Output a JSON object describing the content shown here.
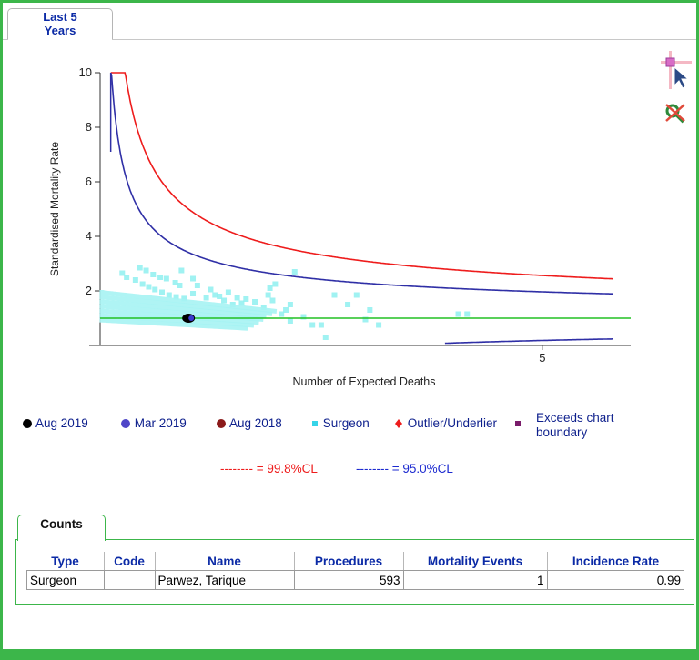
{
  "tabs": {
    "active_line1": "Last 5",
    "active_line2": "Years"
  },
  "tools": {
    "zoom": "zoom-cursor-icon",
    "reset": "reset-zoom-icon"
  },
  "chart_data": {
    "type": "scatter",
    "ylabel": "Standardised Mortality Rate",
    "xlabel": "Number of Expected Deaths",
    "xlim": [
      0,
      6
    ],
    "ylim": [
      0,
      10
    ],
    "x_ticks": [
      "5"
    ],
    "y_ticks": [
      "10",
      "8",
      "6",
      "4",
      "2"
    ],
    "reference_line": {
      "y": 1,
      "color": "#22c023"
    },
    "control_limits": [
      {
        "label": "99.8%CL",
        "color": "#ee1c1c",
        "style": "upper"
      },
      {
        "label": "95.0%CL",
        "color": "#2f2fa6",
        "style": "upper and lower"
      }
    ],
    "series": [
      {
        "name": "Aug 2019",
        "marker": "circle",
        "color": "#000000",
        "points": [
          [
            1.0,
            1.0
          ]
        ]
      },
      {
        "name": "Mar 2019",
        "marker": "circle",
        "color": "#4f46c8",
        "points": []
      },
      {
        "name": "Aug 2018",
        "marker": "circle",
        "color": "#8b1a1a",
        "points": []
      },
      {
        "name": "Surgeon",
        "marker": "square",
        "color": "#8ff0f0",
        "points": [
          [
            0.25,
            2.65
          ],
          [
            0.3,
            2.5
          ],
          [
            0.4,
            2.4
          ],
          [
            0.48,
            2.25
          ],
          [
            0.55,
            2.15
          ],
          [
            0.62,
            2.05
          ],
          [
            0.7,
            1.95
          ],
          [
            0.78,
            1.85
          ],
          [
            0.86,
            1.78
          ],
          [
            0.95,
            1.72
          ],
          [
            0.45,
            2.85
          ],
          [
            0.52,
            2.75
          ],
          [
            0.6,
            2.6
          ],
          [
            0.68,
            2.5
          ],
          [
            0.75,
            2.45
          ],
          [
            0.85,
            2.3
          ],
          [
            0.9,
            2.2
          ],
          [
            0.92,
            2.75
          ],
          [
            1.05,
            2.45
          ],
          [
            1.1,
            2.2
          ],
          [
            1.25,
            2.05
          ],
          [
            1.3,
            1.85
          ],
          [
            1.4,
            1.65
          ],
          [
            1.5,
            1.5
          ],
          [
            1.05,
            1.9
          ],
          [
            1.2,
            1.75
          ],
          [
            1.35,
            1.8
          ],
          [
            1.45,
            1.95
          ],
          [
            1.55,
            1.75
          ],
          [
            1.6,
            1.55
          ],
          [
            1.65,
            1.7
          ],
          [
            1.75,
            1.6
          ],
          [
            1.85,
            1.4
          ],
          [
            1.9,
            1.85
          ],
          [
            1.92,
            2.1
          ],
          [
            1.98,
            2.25
          ],
          [
            1.95,
            1.65
          ],
          [
            2.15,
            1.5
          ],
          [
            2.05,
            1.15
          ],
          [
            2.15,
            0.9
          ],
          [
            2.3,
            1.05
          ],
          [
            2.4,
            0.75
          ],
          [
            2.5,
            0.75
          ],
          [
            2.55,
            0.3
          ],
          [
            2.2,
            2.7
          ],
          [
            2.1,
            1.3
          ],
          [
            2.65,
            1.85
          ],
          [
            2.9,
            1.85
          ],
          [
            2.8,
            1.5
          ],
          [
            3.05,
            1.3
          ],
          [
            3.0,
            0.95
          ],
          [
            3.15,
            0.75
          ],
          [
            4.05,
            1.15
          ],
          [
            4.15,
            1.15
          ]
        ]
      },
      {
        "name": "Outlier/Underlier",
        "marker": "diamond",
        "color": "#ee1c1c",
        "points": []
      },
      {
        "name": "Exceeds chart boundary",
        "marker": "square",
        "color": "#7a1c6a",
        "points": []
      }
    ]
  },
  "legend": {
    "items": [
      "Aug 2019",
      "Mar 2019",
      "Aug 2018",
      "Surgeon",
      "Outlier/Underlier",
      "Exceeds chart",
      "boundary"
    ],
    "cl_998": "-------- = 99.8%CL",
    "cl_950": "-------- = 95.0%CL"
  },
  "counts": {
    "tab_label": "Counts",
    "headers": [
      "Type",
      "Code",
      "Name",
      "Procedures",
      "Mortality Events",
      "Incidence Rate"
    ],
    "row": [
      "Surgeon",
      "",
      "Parwez, Tarique",
      "593",
      "1",
      "0.99"
    ]
  }
}
